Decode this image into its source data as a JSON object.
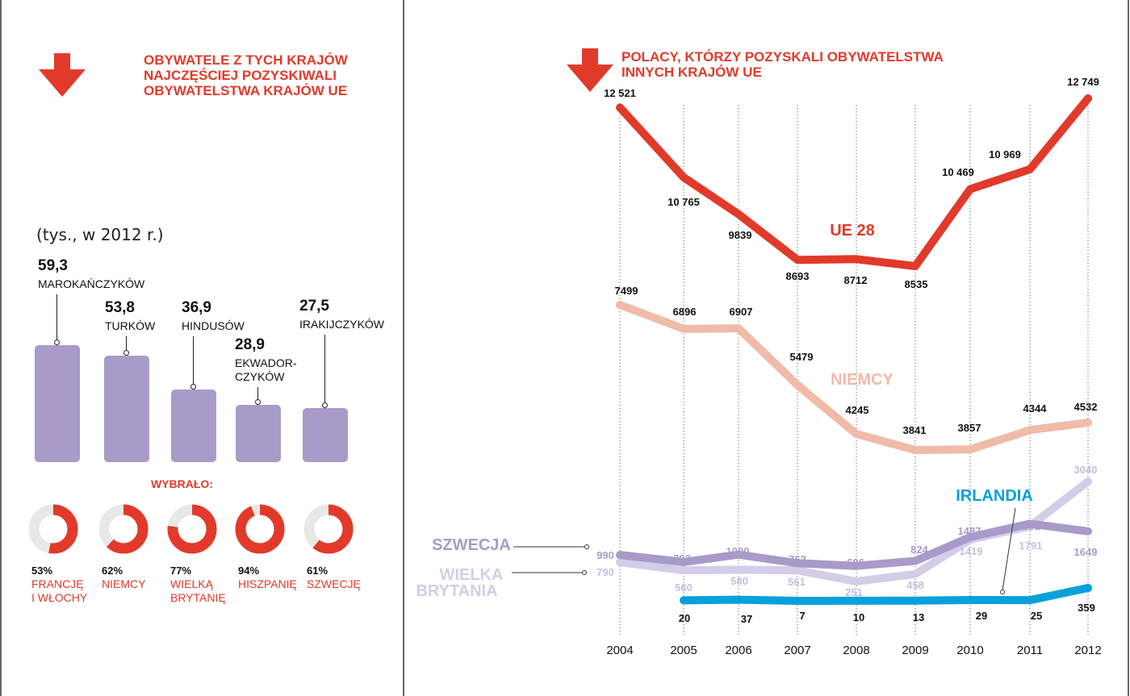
{
  "left_panel": {
    "title": [
      "OBYWATELE Z TYCH KRAJÓW",
      "NAJCZĘŚCIEJ POZYSKIWALI",
      "OBYWATELSTWA KRAJÓW UE"
    ],
    "units": "(tys., w 2012 r.)",
    "chose_label": "WYBRAŁO:",
    "accent_color": "#e23a2a",
    "bar_color": "#a89bc9",
    "donut_bg_color": "#e8e8e8"
  },
  "right_panel": {
    "title": [
      "POLACY, KTÓRZY POZYSKALI OBYWATELSTWA",
      "INNYCH KRAJÓW UE"
    ]
  },
  "chart_data": [
    {
      "type": "bar",
      "categories": [
        "MAROKAŃCZYKÓW",
        "TURKÓW",
        "HINDUSÓW",
        "EKWADOR-CZYKÓW",
        "IRAKIJCZYKÓW"
      ],
      "values": [
        59.3,
        53.8,
        36.9,
        28.9,
        27.5
      ],
      "value_labels": [
        "59,3",
        "53,8",
        "36,9",
        "28,9",
        "27,5"
      ],
      "category_lines": [
        [
          "MAROKAŃCZYKÓW"
        ],
        [
          "TURKÓW"
        ],
        [
          "HINDUSÓW"
        ],
        [
          "EKWADOR-",
          "CZYKÓW"
        ],
        [
          "IRAKIJCZYKÓW"
        ]
      ],
      "choices": [
        {
          "percent": 53,
          "percent_label": "53%",
          "destination": [
            "FRANCJĘ",
            "I WŁOCHY"
          ]
        },
        {
          "percent": 62,
          "percent_label": "62%",
          "destination": [
            "NIEMCY"
          ]
        },
        {
          "percent": 77,
          "percent_label": "77%",
          "destination": [
            "WIELKĄ",
            "BRYTANIĘ"
          ]
        },
        {
          "percent": 94,
          "percent_label": "94%",
          "destination": [
            "HISZPANIĘ"
          ]
        },
        {
          "percent": 61,
          "percent_label": "61%",
          "destination": [
            "SZWECJĘ"
          ]
        }
      ]
    },
    {
      "type": "line",
      "x": [
        "2004",
        "2005",
        "2006",
        "2007",
        "2008",
        "2009",
        "2010",
        "2011",
        "2012"
      ],
      "series": [
        {
          "name": "UE 28",
          "color": "#e23a2a",
          "values": [
            12521,
            10765,
            9839,
            8693,
            8712,
            8535,
            10469,
            10969,
            12749
          ],
          "labels": [
            "12 521",
            "10 765",
            "9839",
            "8693",
            "8712",
            "8535",
            "10 469",
            "10 969",
            "12 749"
          ]
        },
        {
          "name": "NIEMCY",
          "color": "#f0bba8",
          "values": [
            7499,
            6896,
            6907,
            5479,
            4245,
            3841,
            3857,
            4344,
            4532
          ],
          "labels": [
            "7499",
            "6896",
            "6907",
            "5479",
            "4245",
            "3841",
            "3857",
            "4344",
            "4532"
          ]
        },
        {
          "name": "SZWECJA",
          "color": "#a89bc9",
          "values": [
            990,
            793,
            1000,
            762,
            686,
            824,
            1487,
            1861,
            1649
          ],
          "labels": [
            "990",
            "793",
            "1000",
            "762",
            "686",
            "824",
            "1487",
            "1861",
            "1649"
          ]
        },
        {
          "name": "WIELKA BRYTANIA",
          "name_lines": [
            "WIELKA",
            "BRYTANIA"
          ],
          "color": "#d3cde8",
          "values": [
            790,
            560,
            580,
            561,
            251,
            458,
            1419,
            1791,
            3040
          ],
          "labels": [
            "790",
            "560",
            "580",
            "561",
            "251",
            "458",
            "1419",
            "1791",
            "3040"
          ]
        },
        {
          "name": "IRLANDIA",
          "color": "#0aa0dc",
          "values": [
            null,
            20,
            37,
            7,
            10,
            13,
            29,
            25,
            359
          ],
          "labels": [
            "",
            "20",
            "37",
            "7",
            "10",
            "13",
            "29",
            "25",
            "359"
          ]
        }
      ]
    }
  ]
}
